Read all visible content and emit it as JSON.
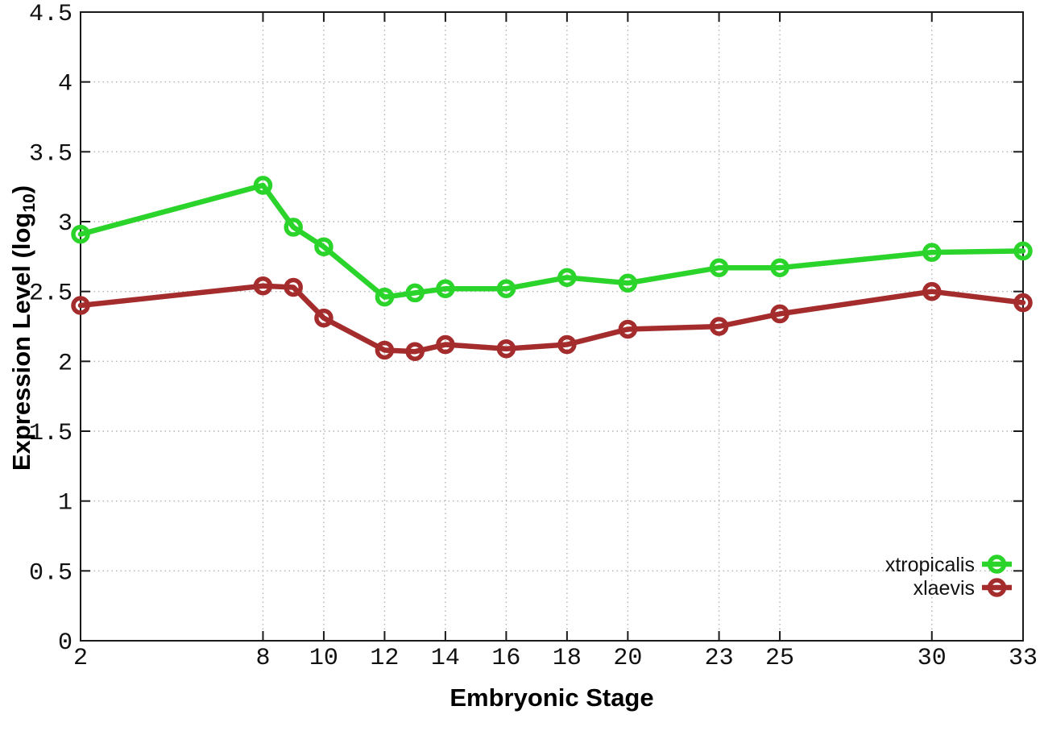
{
  "chart_data": {
    "type": "line",
    "title": "",
    "xlabel": "Embryonic Stage",
    "ylabel": {
      "prefix": "Expression Level (log",
      "subscript": "10",
      "suffix": ")"
    },
    "xlim": [
      2,
      33
    ],
    "ylim": [
      0,
      4.5
    ],
    "x_ticks": [
      "2",
      "8",
      "10",
      "12",
      "14",
      "16",
      "18",
      "20",
      "23",
      "25",
      "30",
      "33"
    ],
    "y_ticks": [
      "0",
      "0.5",
      "1",
      "1.5",
      "2",
      "2.5",
      "3",
      "3.5",
      "4",
      "4.5"
    ],
    "grid": true,
    "legend_position": "inside-bottom-right",
    "x": [
      2,
      8,
      9,
      10,
      12,
      13,
      14,
      16,
      18,
      20,
      23,
      25,
      30,
      33
    ],
    "series": [
      {
        "name": "xtropicalis",
        "color": "#2bd42b",
        "values": [
          2.91,
          3.26,
          2.96,
          2.82,
          2.46,
          2.49,
          2.52,
          2.52,
          2.6,
          2.56,
          2.67,
          2.67,
          2.78,
          2.79
        ]
      },
      {
        "name": "xlaevis",
        "color": "#a52c2c",
        "values": [
          2.4,
          2.54,
          2.53,
          2.31,
          2.08,
          2.07,
          2.12,
          2.09,
          2.12,
          2.23,
          2.25,
          2.34,
          2.5,
          2.42
        ]
      }
    ],
    "colors": {
      "grid": "#b3b3b3",
      "axis": "#1a1a1a",
      "tick_text": "#111111",
      "background": "#ffffff"
    }
  }
}
